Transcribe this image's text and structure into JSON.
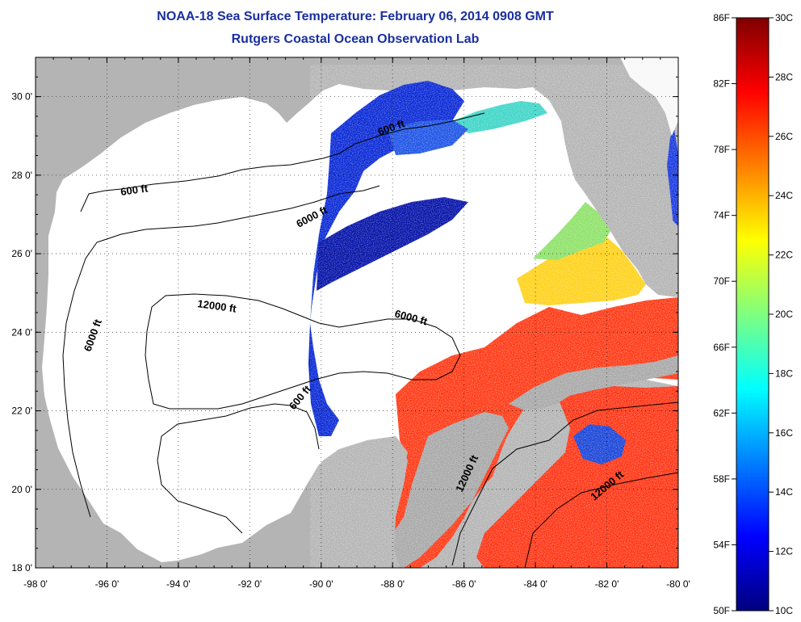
{
  "title": "NOAA-18 Sea Surface Temperature:  February 06, 2014 0908 GMT",
  "subtitle": "Rutgers Coastal Ocean Observation Lab",
  "map": {
    "lon_range": [
      -98,
      -80
    ],
    "lat_range": [
      18,
      31
    ],
    "lon_ticks": [
      "-98 0'",
      "-96 0'",
      "-94 0'",
      "-92 0'",
      "-90 0'",
      "-88 0'",
      "-86 0'",
      "-84 0'",
      "-82 0'",
      "-80 0'"
    ],
    "lat_ticks": [
      "18 0'",
      "20 0'",
      "22 0'",
      "24 0'",
      "26 0'",
      "28 0'",
      "30 0'"
    ],
    "grid": "dotted",
    "contour_labels": [
      "600 ft",
      "6000 ft",
      "12000 ft",
      "6000 ft",
      "6000 ft",
      "600 ft",
      "600 ft",
      "12000 ft",
      "12000 ft"
    ]
  },
  "colorbar": {
    "fahrenheit_labels": [
      "86F",
      "82F",
      "78F",
      "74F",
      "70F",
      "66F",
      "62F",
      "58F",
      "54F",
      "50F"
    ],
    "celsius_labels": [
      "30C",
      "28C",
      "26C",
      "24C",
      "22C",
      "20C",
      "18C",
      "16C",
      "14C",
      "12C",
      "10C"
    ],
    "colormap": [
      "#00007f",
      "#0000ff",
      "#007fff",
      "#00ffff",
      "#7fff7f",
      "#ffff00",
      "#ff7f00",
      "#ff0000",
      "#7f0000"
    ]
  },
  "colors": {
    "land": "#b4b4b4",
    "no_data": "#ffffff",
    "title": "#1a2fa0"
  }
}
